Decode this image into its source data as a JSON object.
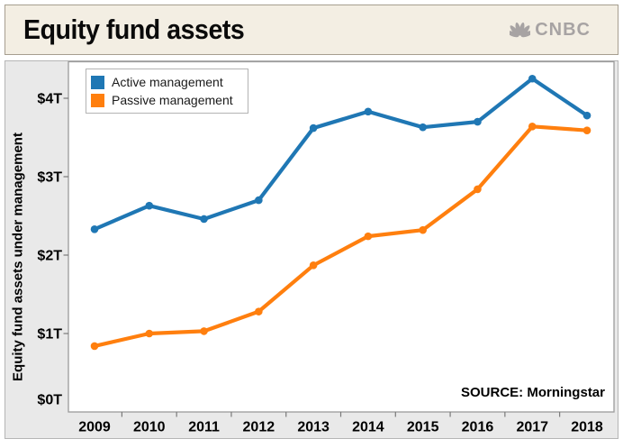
{
  "header": {
    "title": "Equity fund assets",
    "logo_text": "CNBC"
  },
  "chart_data": {
    "type": "line",
    "title": "Equity fund assets",
    "categories": [
      "2009",
      "2010",
      "2011",
      "2012",
      "2013",
      "2014",
      "2015",
      "2016",
      "2017",
      "2018"
    ],
    "series": [
      {
        "name": "Active management",
        "color": "#1f77b4",
        "values": [
          2.33,
          2.63,
          2.46,
          2.7,
          3.62,
          3.83,
          3.63,
          3.7,
          4.25,
          3.78
        ]
      },
      {
        "name": "Passive management",
        "color": "#ff7f0e",
        "values": [
          0.84,
          1.0,
          1.03,
          1.28,
          1.87,
          2.24,
          2.32,
          2.84,
          3.64,
          3.59
        ]
      }
    ],
    "xlabel": "",
    "ylabel": "Equity fund assets under management",
    "yticks": [
      {
        "value": 0,
        "label": "$0T"
      },
      {
        "value": 1,
        "label": "$1T"
      },
      {
        "value": 2,
        "label": "$2T"
      },
      {
        "value": 3,
        "label": "$3T"
      },
      {
        "value": 4,
        "label": "$4T"
      }
    ],
    "ylim": [
      0,
      4.5
    ],
    "grid": false,
    "legend_position": "top-left",
    "source": "SOURCE: Morningstar"
  },
  "colors": {
    "header_bg": "#f3eee3",
    "header_border": "#a69e8f",
    "figure_bg": "#e9e9e9",
    "plot_bg": "#ffffff",
    "spine": "#9c9c9c",
    "logo_gray": "#a7a3a3",
    "active_line": "#1f77b4",
    "passive_line": "#ff7f0e"
  }
}
